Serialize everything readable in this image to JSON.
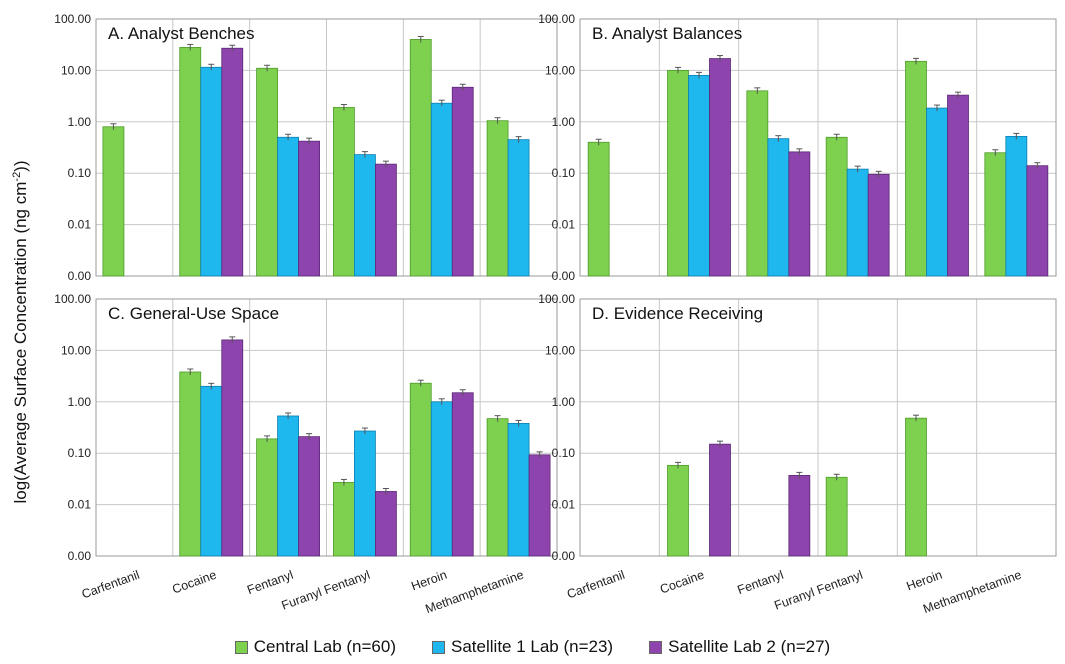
{
  "figure": {
    "ylabel": "log(Average Surface Concentration (ng cm",
    "ylabel_sup": "-2",
    "ylabel_tail": "))"
  },
  "legend": [
    {
      "name": "Central Lab (n=60)",
      "color": "#7ed14e"
    },
    {
      "name": "Satellite 1 Lab (n=23)",
      "color": "#1eb7ee"
    },
    {
      "name": "Satellite Lab 2 (n=27)",
      "color": "#8e44ad"
    }
  ],
  "chart_data": [
    {
      "type": "bar",
      "title": "A. Analyst Benches",
      "scale": "log",
      "ytick_labels": [
        "100.00",
        "10.00",
        "1.00",
        "0.10",
        "0.01",
        "0.00"
      ],
      "categories": [
        "Carfentanil",
        "Cocaine",
        "Fentanyl",
        "Furanyl Fentanyl",
        "Heroin",
        "Methamphetamine"
      ],
      "series": [
        {
          "name": "Central Lab (n=60)",
          "values": [
            0.8,
            28,
            11,
            1.9,
            40,
            1.05
          ]
        },
        {
          "name": "Satellite 1 Lab (n=23)",
          "values": [
            null,
            11.5,
            0.5,
            0.23,
            2.3,
            0.45
          ]
        },
        {
          "name": "Satellite Lab 2 (n=27)",
          "values": [
            null,
            27,
            0.42,
            0.15,
            4.7,
            null
          ]
        }
      ]
    },
    {
      "type": "bar",
      "title": "B. Analyst Balances",
      "scale": "log",
      "ytick_labels": [
        "100.00",
        "10.00",
        "1.00",
        "0.10",
        "0.01",
        "0.00"
      ],
      "categories": [
        "Carfentanil",
        "Cocaine",
        "Fentanyl",
        "Furanyl Fentanyl",
        "Heroin",
        "Methamphetamine"
      ],
      "series": [
        {
          "name": "Central Lab (n=60)",
          "values": [
            0.4,
            10,
            4,
            0.5,
            15,
            0.25
          ]
        },
        {
          "name": "Satellite 1 Lab (n=23)",
          "values": [
            null,
            8,
            0.47,
            0.12,
            1.85,
            0.52
          ]
        },
        {
          "name": "Satellite Lab 2 (n=27)",
          "values": [
            null,
            17,
            0.26,
            0.095,
            3.3,
            0.14
          ]
        }
      ]
    },
    {
      "type": "bar",
      "title": "C. General-Use Space",
      "scale": "log",
      "ytick_labels": [
        "100.00",
        "10.00",
        "1.00",
        "0.10",
        "0.01",
        "0.00"
      ],
      "categories": [
        "Carfentanil",
        "Cocaine",
        "Fentanyl",
        "Furanyl Fentanyl",
        "Heroin",
        "Methamphetamine"
      ],
      "series": [
        {
          "name": "Central Lab (n=60)",
          "values": [
            null,
            3.8,
            0.19,
            0.027,
            2.3,
            0.47
          ]
        },
        {
          "name": "Satellite 1 Lab (n=23)",
          "values": [
            null,
            2.0,
            0.53,
            0.27,
            1.0,
            0.38
          ]
        },
        {
          "name": "Satellite Lab 2 (n=27)",
          "values": [
            null,
            16,
            0.21,
            0.018,
            1.5,
            0.093
          ]
        }
      ]
    },
    {
      "type": "bar",
      "title": "D. Evidence Receiving",
      "scale": "log",
      "ytick_labels": [
        "100.00",
        "10.00",
        "1.00",
        "0.10",
        "0.01",
        "0.00"
      ],
      "categories": [
        "Carfentanil",
        "Cocaine",
        "Fentanyl",
        "Furanyl Fentanyl",
        "Heroin",
        "Methamphetamine"
      ],
      "series": [
        {
          "name": "Central Lab (n=60)",
          "values": [
            null,
            0.058,
            null,
            0.034,
            0.48,
            null
          ]
        },
        {
          "name": "Satellite 1 Lab (n=23)",
          "values": [
            null,
            null,
            null,
            null,
            null,
            null
          ]
        },
        {
          "name": "Satellite Lab 2 (n=27)",
          "values": [
            null,
            0.15,
            0.037,
            null,
            null,
            null
          ]
        }
      ]
    }
  ]
}
